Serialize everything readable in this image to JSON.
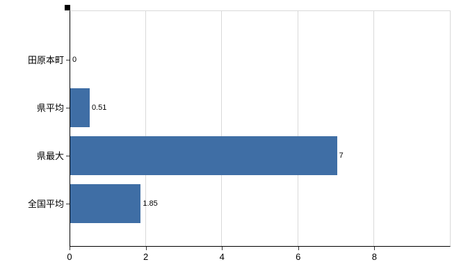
{
  "chart_data": {
    "type": "bar",
    "orientation": "horizontal",
    "title": "",
    "xlabel": "",
    "ylabel": "",
    "categories": [
      "田原本町",
      "県平均",
      "県最大",
      "全国平均"
    ],
    "values": [
      0,
      0.51,
      7,
      1.85
    ],
    "value_labels": [
      "0",
      "0.51",
      "7",
      "1.85"
    ],
    "x_ticks": [
      0,
      2,
      4,
      6,
      8
    ],
    "x_tick_labels": [
      "0",
      "2",
      "4",
      "6",
      "8"
    ],
    "xlim": [
      0,
      10
    ],
    "grid": true,
    "legend": "none",
    "colors": {
      "bar": "#3f6ea5",
      "grid": "#d9d9d9",
      "axis": "#000000",
      "background": "#ffffff"
    }
  }
}
